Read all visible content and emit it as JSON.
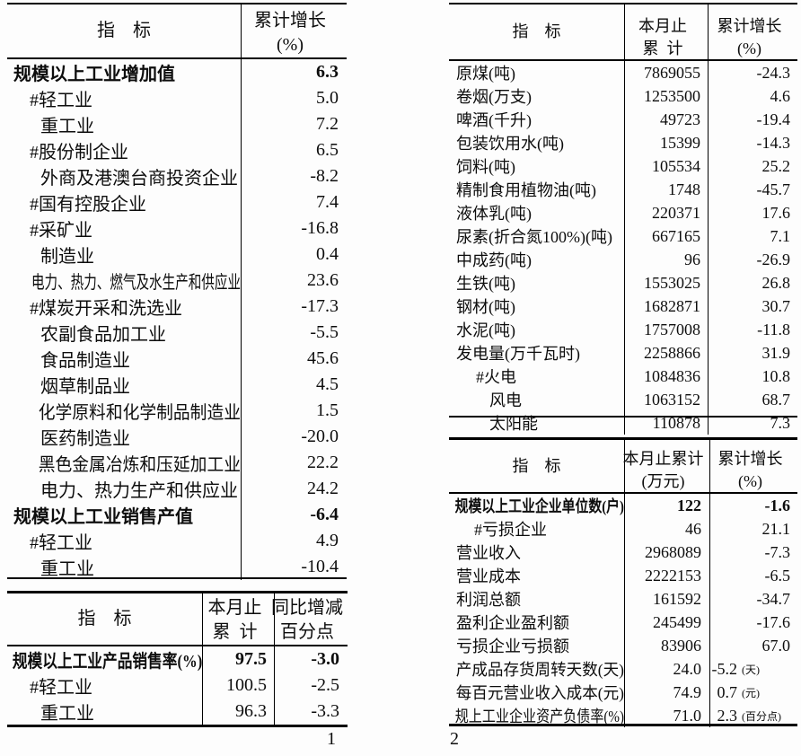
{
  "page1": {
    "page_number": "1",
    "growth_table": {
      "col1_header": "指    标",
      "col2_header_line1": "累计增长",
      "col2_header_line2": "(%)",
      "rows": [
        {
          "label": "规模以上工业增加值",
          "value": "6.3",
          "indent": 0,
          "bold": true
        },
        {
          "label": "#轻工业",
          "value": "5.0",
          "indent": 1
        },
        {
          "label": "重工业",
          "value": "7.2",
          "indent": 2
        },
        {
          "label": "#股份制企业",
          "value": "6.5",
          "indent": 1
        },
        {
          "label": "外商及港澳台商投资企业",
          "value": "-8.2",
          "indent": 2
        },
        {
          "label": "#国有控股企业",
          "value": "7.4",
          "indent": 1
        },
        {
          "label": "#采矿业",
          "value": "-16.8",
          "indent": 1
        },
        {
          "label": "制造业",
          "value": "0.4",
          "indent": 2
        },
        {
          "label": "电力、热力、燃气及水生产和供应业",
          "value": "23.6",
          "indent": 2
        },
        {
          "label": "#煤炭开采和洗选业",
          "value": "-17.3",
          "indent": 1
        },
        {
          "label": "农副食品加工业",
          "value": "-5.5",
          "indent": 2
        },
        {
          "label": "食品制造业",
          "value": "45.6",
          "indent": 2
        },
        {
          "label": "烟草制品业",
          "value": "4.5",
          "indent": 2
        },
        {
          "label": "化学原料和化学制品制造业",
          "value": "1.5",
          "indent": 2
        },
        {
          "label": "医药制造业",
          "value": "-20.0",
          "indent": 2
        },
        {
          "label": "黑色金属冶炼和压延加工业",
          "value": "22.2",
          "indent": 2
        },
        {
          "label": "电力、热力生产和供应业",
          "value": "24.2",
          "indent": 2
        },
        {
          "label": "规模以上工业销售产值",
          "value": "-6.4",
          "indent": 0,
          "bold": true
        },
        {
          "label": "#轻工业",
          "value": "4.9",
          "indent": 1
        },
        {
          "label": "重工业",
          "value": "-10.4",
          "indent": 2
        }
      ]
    },
    "sales_rate_table": {
      "col1_header": "指    标",
      "col2_header_line1": "本月止",
      "col2_header_line2": "累  计",
      "col3_header_line1": "同比增减",
      "col3_header_line2": "百分点",
      "rows": [
        {
          "label": "规模以上工业产品销售率(%)",
          "value1": "97.5",
          "value2": "-3.0",
          "indent": 0,
          "bold": true
        },
        {
          "label": "#轻工业",
          "value1": "100.5",
          "value2": "-2.5",
          "indent": 1
        },
        {
          "label": "重工业",
          "value1": "96.3",
          "value2": "-3.3",
          "indent": 2
        }
      ]
    }
  },
  "page2": {
    "page_number": "2",
    "output_table": {
      "col1_header": "指    标",
      "col2_header_line1": "本月止",
      "col2_header_line2": "累  计",
      "col3_header_line1": "累计增长",
      "col3_header_line2": "(%)",
      "rows": [
        {
          "label": "原煤(吨)",
          "value1": "7869055",
          "value2": "-24.3",
          "indent": 0
        },
        {
          "label": "卷烟(万支)",
          "value1": "1253500",
          "value2": "4.6",
          "indent": 0
        },
        {
          "label": "啤酒(千升)",
          "value1": "49723",
          "value2": "-19.4",
          "indent": 0
        },
        {
          "label": "包装饮用水(吨)",
          "value1": "15399",
          "value2": "-14.3",
          "indent": 0
        },
        {
          "label": "饲料(吨)",
          "value1": "105534",
          "value2": "25.2",
          "indent": 0
        },
        {
          "label": "精制食用植物油(吨)",
          "value1": "1748",
          "value2": "-45.7",
          "indent": 0
        },
        {
          "label": "液体乳(吨)",
          "value1": "220371",
          "value2": "17.6",
          "indent": 0
        },
        {
          "label": "尿素(折合氮100%)(吨)",
          "value1": "667165",
          "value2": "7.1",
          "indent": 0
        },
        {
          "label": "中成药(吨)",
          "value1": "96",
          "value2": "-26.9",
          "indent": 0
        },
        {
          "label": "生铁(吨)",
          "value1": "1553025",
          "value2": "26.8",
          "indent": 0
        },
        {
          "label": "钢材(吨)",
          "value1": "1682871",
          "value2": "30.7",
          "indent": 0
        },
        {
          "label": "水泥(吨)",
          "value1": "1757008",
          "value2": "-11.8",
          "indent": 0
        },
        {
          "label": "发电量(万千瓦时)",
          "value1": "2258866",
          "value2": "31.9",
          "indent": 0
        },
        {
          "label": "#火电",
          "value1": "1084836",
          "value2": "10.8",
          "indent": 1
        },
        {
          "label": "风电",
          "value1": "1063152",
          "value2": "68.7",
          "indent": 2
        },
        {
          "label": "太阳能",
          "value1": "110878",
          "value2": "7.3",
          "indent": 2
        }
      ]
    },
    "finance_table": {
      "col1_header": "指    标",
      "col2_header_line1": "本月止累计",
      "col2_header_line2": "(万元)",
      "col3_header_line1": "累计增长",
      "col3_header_line2": "(%)",
      "rows": [
        {
          "label": "规模以上工业企业单位数(户)",
          "value1": "122",
          "value2": "-1.6",
          "indent": 0,
          "bold": true
        },
        {
          "label": "#亏损企业",
          "value1": "46",
          "value2": "21.1",
          "indent": 1
        },
        {
          "label": "营业收入",
          "value1": "2968089",
          "value2": "-7.3",
          "indent": 0
        },
        {
          "label": "营业成本",
          "value1": "2222153",
          "value2": "-6.5",
          "indent": 0
        },
        {
          "label": "利润总额",
          "value1": "161592",
          "value2": "-34.7",
          "indent": 0
        },
        {
          "label": "盈利企业盈利额",
          "value1": "245499",
          "value2": "-17.6",
          "indent": 0
        },
        {
          "label": "亏损企业亏损额",
          "value1": "83906",
          "value2": "67.0",
          "indent": 0
        },
        {
          "label": "产成品存货周转天数(天)",
          "value1": "24.0",
          "value2": "-5.2",
          "unit": "(天)",
          "indent": 0
        },
        {
          "label": "每百元营业收入成本(元)",
          "value1": "74.9",
          "value2": "0.7",
          "unit": "(元)",
          "indent": 0
        },
        {
          "label": "规上工业企业资产负债率(%)",
          "value1": "71.0",
          "value2": "2.3",
          "unit": "(百分点)",
          "indent": 0
        }
      ]
    }
  }
}
